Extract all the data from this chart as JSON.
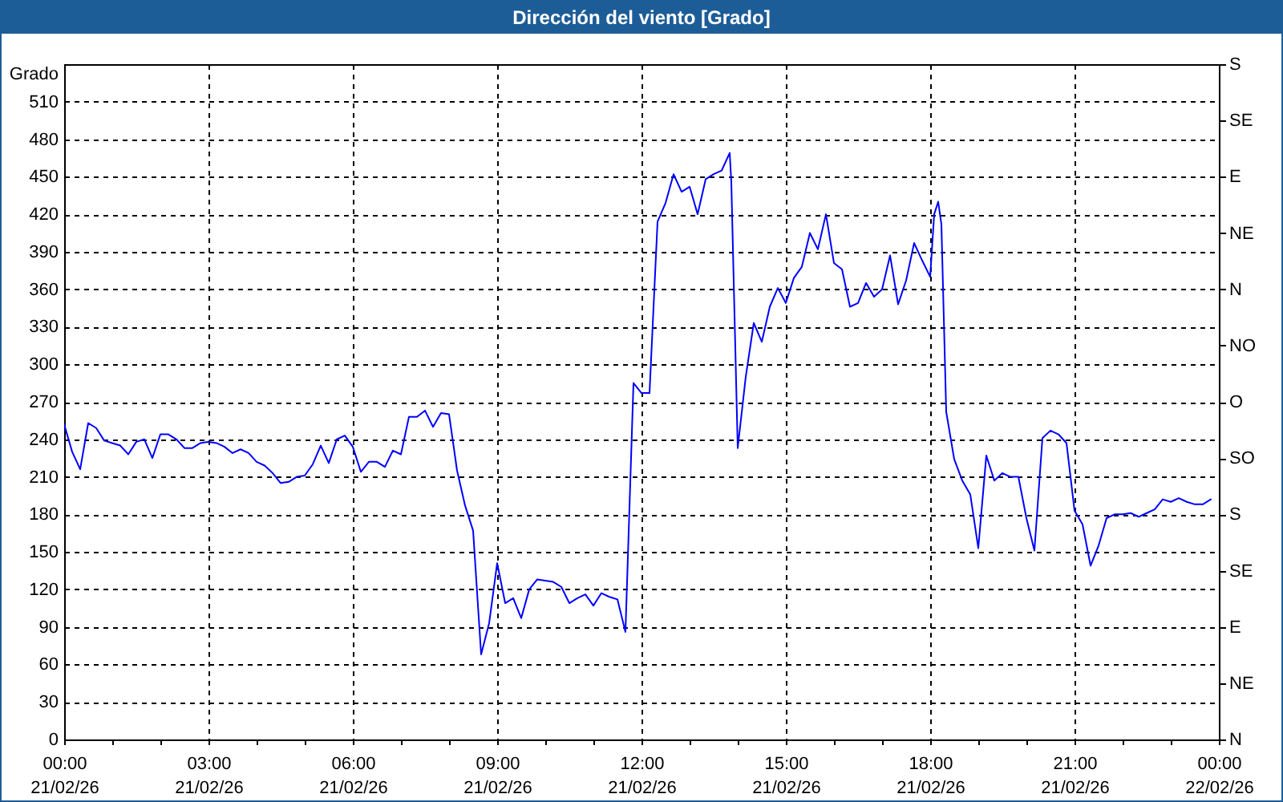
{
  "chart_data": {
    "type": "line",
    "title": "Dirección del viento [Grado]",
    "ylabel": "Grado",
    "color": "#0000ff",
    "grid": true,
    "x": [
      "--02-21T00:00",
      "--02-21T00:10",
      "--02-21T00:20",
      "--02-21T00:30",
      "--02-21T00:40",
      "--02-21T00:50",
      "--02-21T01:00",
      "--02-21T01:10",
      "--02-21T01:20",
      "--02-21T01:30",
      "--02-21T01:40",
      "--02-21T01:50",
      "--02-21T02:00",
      "--02-21T02:10",
      "--02-21T02:20",
      "--02-21T02:30",
      "--02-21T02:40",
      "--02-21T02:50",
      "--02-21T03:00",
      "--02-21T03:10",
      "--02-21T03:20",
      "--02-21T03:30",
      "--02-21T03:40",
      "--02-21T03:50",
      "--02-21T04:00",
      "--02-21T04:10",
      "--02-21T04:20",
      "--02-21T04:30",
      "--02-21T04:40",
      "--02-21T04:50",
      "--02-21T05:00",
      "--02-21T05:10",
      "--02-21T05:20",
      "--02-21T05:30",
      "--02-21T05:40",
      "--02-21T05:50",
      "--02-21T06:00",
      "--02-21T06:10",
      "--02-21T06:20",
      "--02-21T06:30",
      "--02-21T06:40",
      "--02-21T06:50",
      "--02-21T07:00",
      "--02-21T07:10",
      "--02-21T07:20",
      "--02-21T07:30",
      "--02-21T07:40",
      "--02-21T07:50",
      "--02-21T08:00",
      "--02-21T08:10",
      "--02-21T08:20",
      "--02-21T08:30",
      "--02-21T08:40",
      "--02-21T08:50",
      "--02-21T09:00",
      "--02-21T09:10",
      "--02-21T09:20",
      "--02-21T09:30",
      "--02-21T09:40",
      "--02-21T09:50",
      "--02-21T10:00",
      "--02-21T10:10",
      "--02-21T10:20",
      "--02-21T10:30",
      "--02-21T10:40",
      "--02-21T10:50",
      "--02-21T11:00",
      "--02-21T11:10",
      "--02-21T11:20",
      "--02-21T11:30",
      "--02-21T11:40",
      "--02-21T11:50",
      "--02-21T12:00",
      "--02-21T12:10",
      "--02-21T12:20",
      "--02-21T12:30",
      "--02-21T12:40",
      "--02-21T12:50",
      "--02-21T13:00",
      "--02-21T13:10",
      "--02-21T13:20",
      "--02-21T13:30",
      "--02-21T13:40",
      "--02-21T13:50",
      "--02-21T13:52",
      "--02-21T14:00",
      "--02-21T14:10",
      "--02-21T14:20",
      "--02-21T14:30",
      "--02-21T14:40",
      "--02-21T14:50",
      "--02-21T15:00",
      "--02-21T15:10",
      "--02-21T15:20",
      "--02-21T15:30",
      "--02-21T15:40",
      "--02-21T15:50",
      "--02-21T16:00",
      "--02-21T16:10",
      "--02-21T16:20",
      "--02-21T16:30",
      "--02-21T16:40",
      "--02-21T16:50",
      "--02-21T17:00",
      "--02-21T17:10",
      "--02-21T17:20",
      "--02-21T17:30",
      "--02-21T17:40",
      "--02-21T17:50",
      "--02-21T18:00",
      "--02-21T18:05",
      "--02-21T18:10",
      "--02-21T18:14",
      "--02-21T18:20",
      "--02-21T18:30",
      "--02-21T18:40",
      "--02-21T18:50",
      "--02-21T19:00",
      "--02-21T19:10",
      "--02-21T19:20",
      "--02-21T19:30",
      "--02-21T19:40",
      "--02-21T19:50",
      "--02-21T20:00",
      "--02-21T20:10",
      "--02-21T20:20",
      "--02-21T20:30",
      "--02-21T20:40",
      "--02-21T20:50",
      "--02-21T21:00",
      "--02-21T21:10",
      "--02-21T21:20",
      "--02-21T21:30",
      "--02-21T21:40",
      "--02-21T21:50",
      "--02-21T22:00",
      "--02-21T22:10",
      "--02-21T22:20",
      "--02-21T22:30",
      "--02-21T22:40",
      "--02-21T22:50",
      "--02-21T23:00",
      "--02-21T23:10",
      "--02-21T23:20",
      "--02-21T23:30",
      "--02-21T23:40",
      "--02-21T23:50"
    ],
    "values": [
      252,
      230,
      216,
      253,
      249,
      239,
      237,
      235,
      228,
      238,
      240,
      225,
      244,
      244,
      240,
      233,
      233,
      237,
      238,
      237,
      234,
      229,
      232,
      229,
      222,
      219,
      213,
      205,
      206,
      210,
      211,
      220,
      235,
      221,
      240,
      243,
      234,
      214,
      222,
      222,
      218,
      231,
      228,
      258,
      258,
      263,
      250,
      261,
      260,
      215,
      187,
      167,
      68,
      93,
      141,
      109,
      113,
      97,
      120,
      128,
      127,
      126,
      122,
      109,
      113,
      116,
      107,
      117,
      114,
      112,
      86,
      285,
      277,
      277,
      414,
      429,
      452,
      438,
      442,
      420,
      448,
      452,
      455,
      469,
      446,
      233,
      290,
      333,
      318,
      346,
      361,
      349,
      369,
      378,
      405,
      392,
      420,
      381,
      376,
      346,
      349,
      365,
      354,
      360,
      387,
      348,
      367,
      397,
      383,
      370,
      420,
      430,
      412,
      262,
      224,
      207,
      196,
      153,
      227,
      207,
      213,
      210,
      210,
      177,
      151,
      241,
      247,
      244,
      237,
      183,
      172,
      139,
      155,
      177,
      180,
      180,
      181,
      178,
      181,
      184,
      192,
      190,
      193,
      190,
      188,
      188,
      192
    ],
    "xlim": [
      "--02-21T00:00",
      "--02-22T00:00"
    ],
    "xticks": [
      {
        "value": "--02-21T00:00",
        "label": "00:00\n21/02/26"
      },
      {
        "value": "--02-21T01:00",
        "label": null
      },
      {
        "value": "--02-21T02:00",
        "label": null
      },
      {
        "value": "--02-21T03:00",
        "label": "03:00\n21/02/26"
      },
      {
        "value": "--02-21T04:00",
        "label": null
      },
      {
        "value": "--02-21T05:00",
        "label": null
      },
      {
        "value": "--02-21T06:00",
        "label": "06:00\n21/02/26"
      },
      {
        "value": "--02-21T07:00",
        "label": null
      },
      {
        "value": "--02-21T08:00",
        "label": null
      },
      {
        "value": "--02-21T09:00",
        "label": "09:00\n21/02/26"
      },
      {
        "value": "--02-21T10:00",
        "label": null
      },
      {
        "value": "--02-21T11:00",
        "label": null
      },
      {
        "value": "--02-21T12:00",
        "label": "12:00\n21/02/26"
      },
      {
        "value": "--02-21T13:00",
        "label": null
      },
      {
        "value": "--02-21T14:00",
        "label": null
      },
      {
        "value": "--02-21T15:00",
        "label": "15:00\n21/02/26"
      },
      {
        "value": "--02-21T16:00",
        "label": null
      },
      {
        "value": "--02-21T17:00",
        "label": null
      },
      {
        "value": "--02-21T18:00",
        "label": "18:00\n21/02/26"
      },
      {
        "value": "--02-21T19:00",
        "label": null
      },
      {
        "value": "--02-21T20:00",
        "label": null
      },
      {
        "value": "--02-21T21:00",
        "label": "21:00\n21/02/26"
      },
      {
        "value": "--02-21T22:00",
        "label": null
      },
      {
        "value": "--02-21T23:00",
        "label": null
      },
      {
        "value": "--02-22T00:00",
        "label": "00:00\n22/02/26"
      }
    ],
    "ylim": [
      0,
      540
    ],
    "yticks": [
      0,
      30,
      60,
      90,
      120,
      150,
      180,
      210,
      240,
      270,
      300,
      330,
      360,
      390,
      420,
      450,
      480,
      510
    ],
    "y2_categories": [
      "S",
      "SE",
      "E",
      "NE",
      "N",
      "NO",
      "O",
      "SO",
      "S",
      "SE",
      "E",
      "NE",
      "N"
    ]
  }
}
